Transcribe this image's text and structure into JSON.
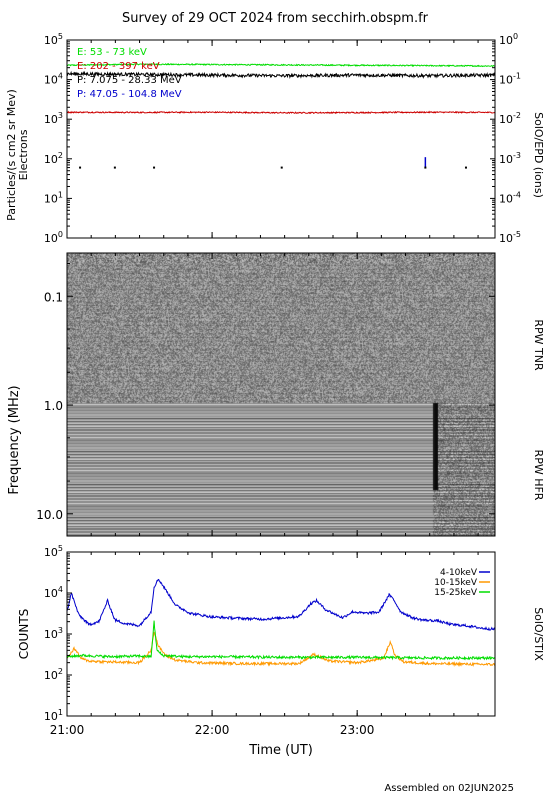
{
  "title": "Survey of 29 OCT 2024 from secchirh.obspm.fr",
  "footer": "Assembled on 02JUN2025",
  "x_axis": {
    "label": "Time (UT)",
    "range_hours": [
      21.0,
      23.95
    ],
    "ticks": [
      {
        "value": 21.0,
        "label": "21:00"
      },
      {
        "value": 22.0,
        "label": "22:00"
      },
      {
        "value": 23.0,
        "label": "23:00"
      }
    ]
  },
  "colors": {
    "green": "#00dd00",
    "red": "#cc0000",
    "black": "#000000",
    "blue": "#0000cc",
    "orange": "#ff9900",
    "stix_blue": "#0000cc"
  },
  "chart_data": [
    {
      "type": "line",
      "panel": "particles",
      "ylabel": "Particles/(s cm2 sr Mev)",
      "ylabel2": "Electrons",
      "right_label": "SolO/EPD (ions)",
      "yscale": "log",
      "ylim": [
        1,
        100000
      ],
      "yticks": [
        {
          "value": 1,
          "label": "10^0"
        },
        {
          "value": 10,
          "label": "10^1"
        },
        {
          "value": 100,
          "label": "10^2"
        },
        {
          "value": 1000,
          "label": "10^3"
        },
        {
          "value": 10000,
          "label": "10^4"
        },
        {
          "value": 100000,
          "label": "10^5"
        }
      ],
      "y2scale": "log",
      "y2ticks": [
        {
          "value": 1e-05,
          "label": "10^-5"
        },
        {
          "value": 0.0001,
          "label": "10^-4"
        },
        {
          "value": 0.001,
          "label": "10^-3"
        },
        {
          "value": 0.01,
          "label": "10^-2"
        },
        {
          "value": 0.1,
          "label": "10^-1"
        },
        {
          "value": 1,
          "label": "10^0"
        }
      ],
      "legend_placement": "top-left",
      "series": [
        {
          "name": "E: 53 - 73 keV",
          "color": "#00dd00",
          "x": [
            21.0,
            21.5,
            22.0,
            22.5,
            23.0,
            23.5,
            23.95
          ],
          "y": [
            23000,
            24500,
            24000,
            23500,
            23000,
            22500,
            22000
          ]
        },
        {
          "name": "E: 202 - 397 keV",
          "color": "#cc0000",
          "x": [
            21.0,
            21.5,
            22.0,
            22.5,
            23.0,
            23.5,
            23.95
          ],
          "y": [
            1500,
            1480,
            1500,
            1450,
            1470,
            1500,
            1480
          ]
        },
        {
          "name": "P: 7.075 - 28.33 MeV",
          "color": "#000000",
          "x": [
            21.0,
            21.5,
            22.0,
            22.5,
            23.0,
            23.5,
            23.95
          ],
          "y": [
            14000,
            13500,
            13000,
            12500,
            13000,
            12500,
            13000
          ]
        },
        {
          "name": "P: 47.05 - 104.8 MeV",
          "color": "#0000cc",
          "x": [
            23.47,
            23.47
          ],
          "y": [
            60,
            110
          ]
        }
      ],
      "sparse_points": {
        "x": [
          21.09,
          21.33,
          21.6,
          22.48,
          23.47,
          23.75
        ],
        "y": [
          60,
          60,
          60,
          60,
          60,
          60
        ]
      }
    },
    {
      "type": "heatmap",
      "panel": "rpw",
      "ylabel": "Frequency (MHz)",
      "yscale": "log-inverted",
      "ylim": [
        0.04,
        16
      ],
      "yticks": [
        {
          "value": 0.1,
          "label": "0.1"
        },
        {
          "value": 1.0,
          "label": "1.0"
        },
        {
          "value": 10.0,
          "label": "10.0"
        }
      ],
      "bands": [
        {
          "name": "RPW TNR",
          "range_mhz": [
            0.04,
            0.95
          ]
        },
        {
          "name": "RPW HFR",
          "range_mhz": [
            0.95,
            16
          ]
        }
      ],
      "burst_time_hours": 23.55
    },
    {
      "type": "line",
      "panel": "stix",
      "ylabel": "COUNTS",
      "right_label": "SolO/STIX",
      "yscale": "log",
      "ylim": [
        10,
        100000
      ],
      "yticks": [
        {
          "value": 10,
          "label": "10^1"
        },
        {
          "value": 100,
          "label": "10^2"
        },
        {
          "value": 1000,
          "label": "10^3"
        },
        {
          "value": 10000,
          "label": "10^4"
        },
        {
          "value": 100000,
          "label": "10^5"
        }
      ],
      "legend_placement": "top-right",
      "series": [
        {
          "name": "4-10keV",
          "color": "#0000cc",
          "x": [
            21.0,
            21.03,
            21.08,
            21.15,
            21.22,
            21.28,
            21.33,
            21.4,
            21.5,
            21.58,
            21.6,
            21.63,
            21.68,
            21.75,
            21.85,
            22.0,
            22.2,
            22.35,
            22.5,
            22.6,
            22.68,
            22.72,
            22.78,
            22.85,
            22.9,
            22.97,
            23.05,
            23.15,
            23.22,
            23.25,
            23.3,
            23.38,
            23.45,
            23.55,
            23.65,
            23.75,
            23.85,
            23.95
          ],
          "y": [
            3500,
            10000,
            3000,
            1700,
            2000,
            6500,
            2200,
            1800,
            1600,
            3500,
            14000,
            22000,
            12000,
            5000,
            3200,
            2600,
            2400,
            2300,
            2500,
            2700,
            5500,
            6500,
            4000,
            3000,
            2500,
            3500,
            3200,
            3400,
            9000,
            7000,
            3500,
            2500,
            2200,
            2100,
            1700,
            1600,
            1400,
            1300
          ]
        },
        {
          "name": "10-15keV",
          "color": "#ff9900",
          "x": [
            21.0,
            21.05,
            21.1,
            21.15,
            21.25,
            21.5,
            21.58,
            21.6,
            21.63,
            21.68,
            21.75,
            21.9,
            22.2,
            22.6,
            22.7,
            22.75,
            22.8,
            23.0,
            23.18,
            23.23,
            23.26,
            23.32,
            23.5,
            23.95
          ],
          "y": [
            250,
            450,
            250,
            220,
            210,
            200,
            400,
            1200,
            500,
            300,
            230,
            200,
            190,
            190,
            320,
            270,
            220,
            200,
            250,
            650,
            300,
            210,
            190,
            180
          ]
        },
        {
          "name": "15-25keV",
          "color": "#00dd00",
          "x": [
            21.0,
            21.1,
            21.3,
            21.5,
            21.58,
            21.6,
            21.62,
            21.66,
            21.8,
            22.0,
            22.5,
            23.0,
            23.5,
            23.95
          ],
          "y": [
            280,
            300,
            280,
            290,
            280,
            2000,
            400,
            300,
            280,
            280,
            270,
            270,
            260,
            260
          ]
        }
      ]
    }
  ]
}
